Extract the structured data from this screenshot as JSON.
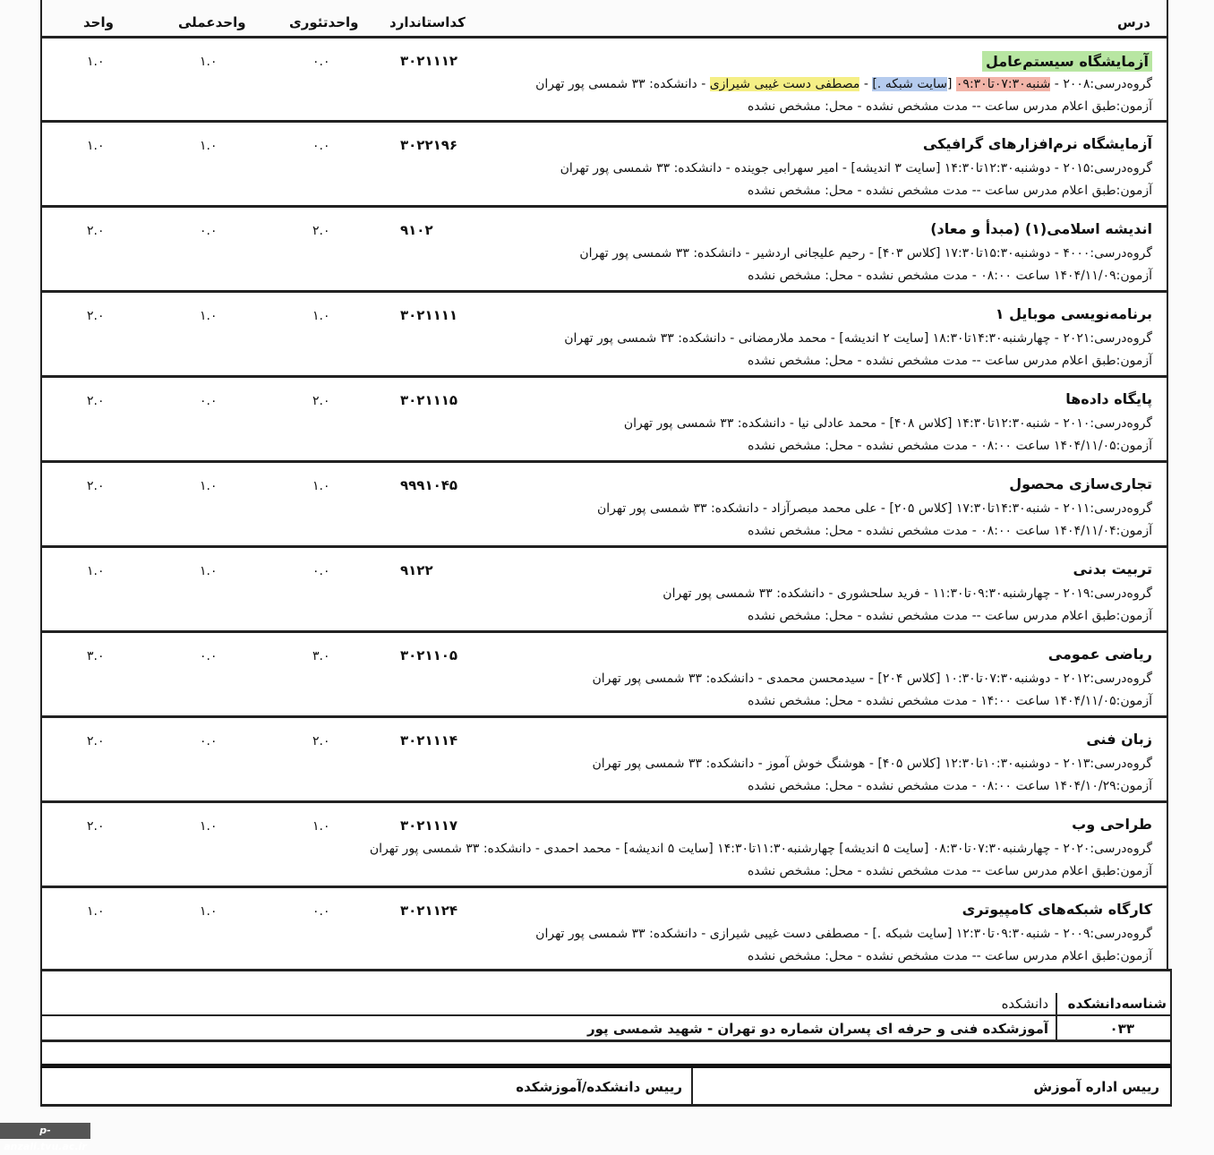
{
  "header": {
    "course": "درس",
    "code": "کداستاندارد",
    "theory": "واحدتئوری",
    "practical": "واحدعملی",
    "total": "واحد"
  },
  "highlight_colors": {
    "title": "#b8e6a2",
    "time": "#f2b4a8",
    "room": "#b5cbee",
    "teacher": "#f5ef86"
  },
  "courses": [
    {
      "title": "آزمایشگاه سیستم‌عامل",
      "code": "۳۰۲۱۱۱۲",
      "theory": "۰.۰",
      "practical": "۱.۰",
      "total": "۱.۰",
      "highlighted": true,
      "group_segments": [
        "گروه‌درسی:۲۰۰۸ - ",
        "شنبه۰۷:۳۰تا۰۹:۳۰",
        " [",
        "سایت شبکه .]",
        " - ",
        "مصطفی دست غیبی شیرازی",
        " - دانشکده: ۳۳ شمسی پور تهران"
      ],
      "exam": "آزمون:طبق اعلام مدرس ساعت -- مدت مشخص نشده - محل: مشخص نشده"
    },
    {
      "title": "آزمایشگاه نرم‌افزارهای گرافیکی",
      "code": "۳۰۲۲۱۹۶",
      "theory": "۰.۰",
      "practical": "۱.۰",
      "total": "۱.۰",
      "group": "گروه‌درسی:۲۰۱۵ - دوشنبه۱۲:۳۰تا۱۴:۳۰ [سایت ۳ اندیشه] - امیر سهرابی جوینده - دانشکده: ۳۳ شمسی پور تهران",
      "exam": "آزمون:طبق اعلام مدرس ساعت -- مدت مشخص نشده - محل: مشخص نشده"
    },
    {
      "title": "اندیشه اسلامی(۱) (مبدأ و معاد)",
      "code": "۹۱۰۲",
      "theory": "۲.۰",
      "practical": "۰.۰",
      "total": "۲.۰",
      "group": "گروه‌درسی:۴۰۰۰ - دوشنبه۱۵:۳۰تا۱۷:۳۰ [کلاس ۴۰۳] - رحیم علیجانی اردشیر - دانشکده: ۳۳ شمسی پور تهران",
      "exam": "آزمون:۱۴۰۴/۱۱/۰۹ ساعت ۰۸:۰۰ - مدت مشخص نشده - محل: مشخص نشده"
    },
    {
      "title": "برنامه‌نویسی موبایل ۱",
      "code": "۳۰۲۱۱۱۱",
      "theory": "۱.۰",
      "practical": "۱.۰",
      "total": "۲.۰",
      "group": "گروه‌درسی:۲۰۲۱ - چهارشنبه۱۴:۳۰تا۱۸:۳۰ [سایت ۲ اندیشه] - محمد ملارمضانی - دانشکده: ۳۳ شمسی پور تهران",
      "exam": "آزمون:طبق اعلام مدرس ساعت -- مدت مشخص نشده - محل: مشخص نشده"
    },
    {
      "title": "پایگاه داده‌ها",
      "code": "۳۰۲۱۱۱۵",
      "theory": "۲.۰",
      "practical": "۰.۰",
      "total": "۲.۰",
      "group": "گروه‌درسی:۲۰۱۰ - شنبه۱۲:۳۰تا۱۴:۳۰ [کلاس ۴۰۸] - محمد عادلی نیا - دانشکده: ۳۳ شمسی پور تهران",
      "exam": "آزمون:۱۴۰۴/۱۱/۰۵ ساعت ۰۸:۰۰ - مدت مشخص نشده - محل: مشخص نشده"
    },
    {
      "title": "تجاری‌سازی محصول",
      "code": "۹۹۹۱۰۴۵",
      "theory": "۱.۰",
      "practical": "۱.۰",
      "total": "۲.۰",
      "group": "گروه‌درسی:۲۰۱۱ - شنبه۱۴:۳۰تا۱۷:۳۰ [کلاس ۲۰۵] - علی محمد مبصرآزاد - دانشکده: ۳۳ شمسی پور تهران",
      "exam": "آزمون:۱۴۰۴/۱۱/۰۴ ساعت ۰۸:۰۰ - مدت مشخص نشده - محل: مشخص نشده"
    },
    {
      "title": "تربیت بدنی",
      "code": "۹۱۲۲",
      "theory": "۰.۰",
      "practical": "۱.۰",
      "total": "۱.۰",
      "group": "گروه‌درسی:۲۰۱۹ - چهارشنبه۰۹:۳۰تا۱۱:۳۰ - فرید سلحشوری - دانشکده: ۳۳ شمسی پور تهران",
      "exam": "آزمون:طبق اعلام مدرس ساعت -- مدت مشخص نشده - محل: مشخص نشده"
    },
    {
      "title": "ریاضی عمومی",
      "code": "۳۰۲۱۱۰۵",
      "theory": "۳.۰",
      "practical": "۰.۰",
      "total": "۳.۰",
      "group": "گروه‌درسی:۲۰۱۲ - دوشنبه۰۷:۳۰تا۱۰:۳۰ [کلاس ۲۰۴] - سیدمحسن محمدی - دانشکده: ۳۳ شمسی پور تهران",
      "exam": "آزمون:۱۴۰۴/۱۱/۰۵ ساعت ۱۴:۰۰ - مدت مشخص نشده - محل: مشخص نشده"
    },
    {
      "title": "زبان فنی",
      "code": "۳۰۲۱۱۱۴",
      "theory": "۲.۰",
      "practical": "۰.۰",
      "total": "۲.۰",
      "group": "گروه‌درسی:۲۰۱۳ - دوشنبه۱۰:۳۰تا۱۲:۳۰ [کلاس ۴۰۵] - هوشنگ خوش آموز - دانشکده: ۳۳ شمسی پور تهران",
      "exam": "آزمون:۱۴۰۴/۱۰/۲۹ ساعت ۰۸:۰۰ - مدت مشخص نشده - محل: مشخص نشده"
    },
    {
      "title": "طراحی وب",
      "code": "۳۰۲۱۱۱۷",
      "theory": "۱.۰",
      "practical": "۱.۰",
      "total": "۲.۰",
      "group": "گروه‌درسی:۲۰۲۰ - چهارشنبه۰۷:۳۰تا۰۸:۳۰ [سایت ۵ اندیشه] چهارشنبه۱۱:۳۰تا۱۴:۳۰ [سایت ۵ اندیشه] - محمد احمدی - دانشکده: ۳۳ شمسی پور تهران",
      "exam": "آزمون:طبق اعلام مدرس ساعت -- مدت مشخص نشده - محل: مشخص نشده"
    },
    {
      "title": "کارگاه شبکه‌های کامپیوتری",
      "code": "۳۰۲۱۱۲۴",
      "theory": "۰.۰",
      "practical": "۱.۰",
      "total": "۱.۰",
      "group": "گروه‌درسی:۲۰۰۹ - شنبه۰۹:۳۰تا۱۲:۳۰ [سایت شبکه .] - مصطفی دست غیبی شیرازی - دانشکده: ۳۳ شمسی پور تهران",
      "exam": "آزمون:طبق اعلام مدرس ساعت -- مدت مشخص نشده - محل: مشخص نشده"
    }
  ],
  "school": {
    "id_label": "شناسه‌دانشکده",
    "name_label": "دانشکده",
    "id": "۰۳۳",
    "name": "آموزشکده فنی و حرفه ای پسران شماره دو تهران - شهید شمسی پور"
  },
  "signatures": {
    "education_head": "رییس اداره آموزش",
    "school_head": "رییس دانشکده/آموزشکده"
  },
  "watermark": "p-anzali.tvu.ac.ir"
}
